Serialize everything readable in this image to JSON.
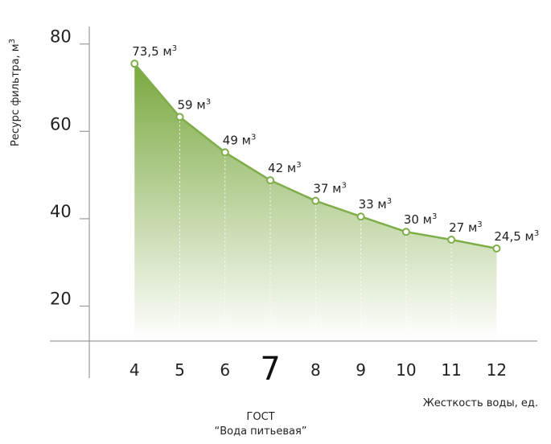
{
  "chart_data": {
    "type": "area",
    "x": [
      4,
      5,
      6,
      7,
      8,
      9,
      10,
      11,
      12
    ],
    "x_tick_labels": [
      "4",
      "5",
      "6",
      "7",
      "8",
      "9",
      "10",
      "11",
      "12"
    ],
    "highlight_tick": "7",
    "points": [
      {
        "x": 4,
        "y": 75.5,
        "value": "73,5",
        "unit": "м",
        "sup": "3"
      },
      {
        "x": 5,
        "y": 63.3,
        "value": "59",
        "unit": "м",
        "sup": "3"
      },
      {
        "x": 6,
        "y": 55.2,
        "value": "49",
        "unit": "м",
        "sup": "3"
      },
      {
        "x": 8,
        "y": 44.1,
        "value": "37",
        "unit": "м",
        "sup": "3"
      },
      {
        "x": 7,
        "y": 48.8,
        "value": "42",
        "unit": "м",
        "sup": "3"
      },
      {
        "x": 9,
        "y": 40.5,
        "value": "33",
        "unit": "м",
        "sup": "3"
      },
      {
        "x": 10,
        "y": 37.0,
        "value": "30",
        "unit": "м",
        "sup": "3"
      },
      {
        "x": 11,
        "y": 35.2,
        "value": "27",
        "unit": "м",
        "sup": "3"
      },
      {
        "x": 12,
        "y": 33.2,
        "value": "24,5",
        "unit": "м",
        "sup": "3"
      }
    ],
    "y_ticks": [
      20,
      40,
      60,
      80
    ],
    "ylim": [
      12,
      84
    ],
    "xlim": [
      3,
      12.9
    ],
    "ylabel": "Ресурс фильтра, м",
    "ylabel_sup": "3",
    "xlabel": "Жесткость воды, ед.",
    "annotation_line1": "ГОСТ",
    "annotation_line2": "“Вода питьевая”",
    "colors": {
      "line": "#7fad4a",
      "fill_top": "#7aa83f",
      "fill_bottom": "#ffffff",
      "axis": "#9a9a9a",
      "drop_line": "#ffffff"
    }
  }
}
